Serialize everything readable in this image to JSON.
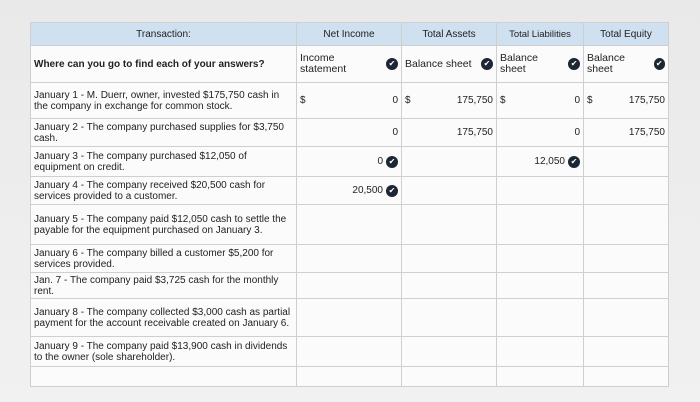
{
  "headers": {
    "transaction": "Transaction:",
    "net_income": "Net Income",
    "total_assets": "Total Assets",
    "total_liabilities": "Total Liabilities",
    "total_equity": "Total Equity"
  },
  "question": "Where can you go to find each of your answers?",
  "sources": {
    "net_income": "Income statement",
    "total_assets": "Balance sheet",
    "total_liabilities": "Balance sheet",
    "total_equity": "Balance sheet"
  },
  "currency_symbol": "$",
  "rows": [
    {
      "text": "January 1 - M. Duerr, owner, invested $175,750 cash in the company in exchange for common stock.",
      "net_income": "0",
      "total_assets": "175,750",
      "total_liabilities": "0",
      "total_equity": "175,750"
    },
    {
      "text": "January 2 - The company purchased supplies for $3,750 cash.",
      "net_income": "0",
      "total_assets": "175,750",
      "total_liabilities": "0",
      "total_equity": "175,750"
    },
    {
      "text": "January 3 - The company purchased $12,050 of equipment on credit.",
      "net_income": "0",
      "total_assets": "",
      "total_liabilities": "12,050",
      "total_equity": ""
    },
    {
      "text": "January 4 - The company received $20,500 cash for services provided to a customer.",
      "net_income": "20,500",
      "total_assets": "",
      "total_liabilities": "",
      "total_equity": ""
    },
    {
      "text": "January 5 - The company paid $12,050 cash to settle the payable for the equipment purchased on January 3.",
      "net_income": "",
      "total_assets": "",
      "total_liabilities": "",
      "total_equity": ""
    },
    {
      "text": "January 6 - The company billed a customer $5,200 for services provided.",
      "net_income": "",
      "total_assets": "",
      "total_liabilities": "",
      "total_equity": ""
    },
    {
      "text": "Jan. 7 - The company paid $3,725 cash for the monthly rent.",
      "net_income": "",
      "total_assets": "",
      "total_liabilities": "",
      "total_equity": ""
    },
    {
      "text": "January 8 - The company collected $3,000 cash as partial payment for the account receivable created on January 6.",
      "net_income": "",
      "total_assets": "",
      "total_liabilities": "",
      "total_equity": ""
    },
    {
      "text": "January 9 - The company paid $13,900 cash in dividends to the owner (sole shareholder).",
      "net_income": "",
      "total_assets": "",
      "total_liabilities": "",
      "total_equity": ""
    }
  ],
  "check_icon": "check-circle-icon",
  "colors": {
    "header_bg": "#cfe0f0",
    "check": "#1c2733"
  }
}
